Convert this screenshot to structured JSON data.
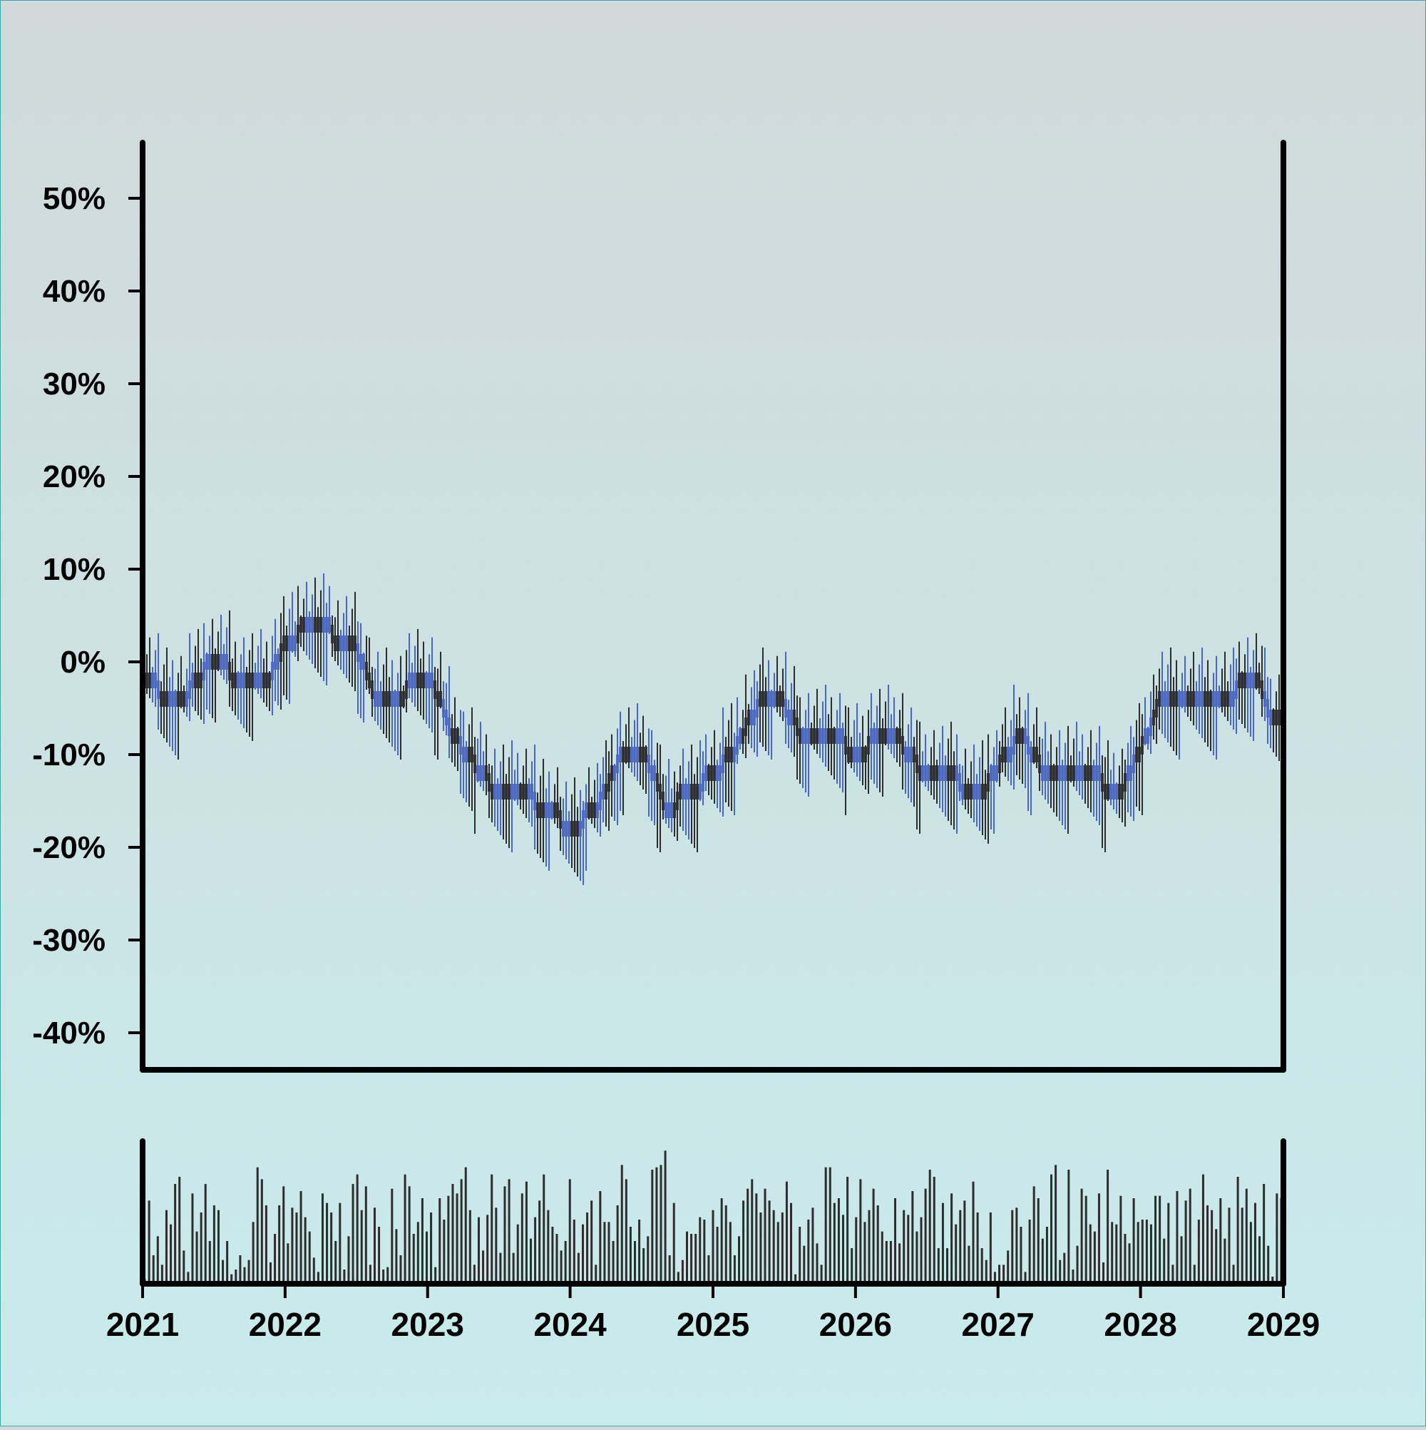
{
  "chart_data": {
    "type": "candlestick",
    "title": "",
    "xlabel": "",
    "ylabel": "",
    "y_ticks": [
      "50%",
      "40%",
      "30%",
      "20%",
      "10%",
      "0%",
      "-10%",
      "-20%",
      "-30%",
      "-40%"
    ],
    "x_ticks": [
      "2021",
      "2022",
      "2023",
      "2024",
      "2025",
      "2026",
      "2027",
      "2028",
      "2029"
    ],
    "ylim": [
      -0.44,
      0.56
    ],
    "xlim": [
      "2021-01-01",
      "2029-01-01"
    ],
    "grid": false,
    "legend": "none",
    "colors": {
      "up": "#2d2d2d",
      "down": "#4a67c1",
      "volume": "#2d2d2d",
      "axis": "#000000",
      "background_top": "#d1d9da",
      "background_bottom": "#c8ebec"
    },
    "series": [
      {
        "name": "",
        "dates": [
          "2021-01",
          "2021-03",
          "2021-05",
          "2021-07",
          "2021-09",
          "2021-11",
          "2022-01",
          "2022-03",
          "2022-05",
          "2022-07",
          "2022-09",
          "2022-11",
          "2023-01",
          "2023-03",
          "2023-05",
          "2023-07",
          "2023-09",
          "2023-11",
          "2024-01",
          "2024-03",
          "2024-05",
          "2024-07",
          "2024-09",
          "2024-11",
          "2025-01",
          "2025-03",
          "2025-05",
          "2025-07",
          "2025-09",
          "2025-11",
          "2026-01",
          "2026-03",
          "2026-05",
          "2026-07",
          "2026-09",
          "2026-11",
          "2027-01",
          "2027-03",
          "2027-05",
          "2027-07",
          "2027-09",
          "2027-11",
          "2028-01",
          "2028-03",
          "2028-05",
          "2028-07",
          "2028-09",
          "2028-11",
          "2028-12"
        ],
        "values": [
          -0.01,
          -0.04,
          -0.03,
          0.01,
          -0.02,
          -0.03,
          0.02,
          0.04,
          0.03,
          0.01,
          -0.05,
          -0.03,
          -0.01,
          -0.08,
          -0.11,
          -0.15,
          -0.14,
          -0.16,
          -0.18,
          -0.16,
          -0.11,
          -0.09,
          -0.16,
          -0.14,
          -0.12,
          -0.09,
          -0.04,
          -0.05,
          -0.09,
          -0.07,
          -0.11,
          -0.07,
          -0.09,
          -0.13,
          -0.12,
          -0.15,
          -0.11,
          -0.08,
          -0.12,
          -0.13,
          -0.12,
          -0.15,
          -0.09,
          -0.03,
          -0.04,
          -0.04,
          -0.03,
          -0.03,
          -0.06
        ]
      }
    ],
    "volume": {
      "values": [
        2,
        35,
        12,
        20,
        8,
        31,
        25,
        42,
        45,
        14,
        5,
        38,
        22,
        30,
        42,
        18,
        33,
        31,
        10,
        18,
        4,
        6,
        12,
        7,
        10,
        26,
        49,
        44,
        33,
        9,
        21,
        33,
        41,
        17,
        32,
        30,
        39,
        28,
        22,
        11,
        5,
        38,
        34,
        30,
        18,
        34,
        6,
        20,
        42,
        46,
        31,
        41,
        8,
        32,
        24,
        6,
        7,
        40,
        23,
        12,
        46,
        41,
        21,
        26,
        36,
        22,
        30,
        7,
        36,
        27,
        37,
        42,
        38,
        44,
        49,
        31,
        8,
        28,
        14,
        29,
        46,
        32,
        13,
        41,
        44,
        13,
        25,
        38,
        43,
        19,
        28,
        35,
        46,
        31,
        24,
        21,
        14,
        18,
        44,
        27,
        13,
        25,
        30,
        35,
        8,
        39,
        26,
        26,
        18,
        33,
        50,
        44,
        24,
        18,
        27,
        15,
        20,
        48,
        49,
        50,
        56,
        12,
        34,
        5,
        10,
        22,
        21,
        21,
        28,
        27,
        12,
        31,
        24,
        36,
        33,
        26,
        12,
        20,
        35,
        40,
        44,
        38,
        30,
        40,
        35,
        31,
        26,
        30,
        43,
        34,
        4,
        24,
        16,
        27,
        32,
        17,
        8,
        49,
        49,
        34,
        36,
        29,
        45,
        15,
        28,
        44,
        26,
        31,
        40,
        33,
        22,
        18,
        18,
        36,
        17,
        31,
        29,
        39,
        22,
        28,
        40,
        48,
        45,
        15,
        34,
        15,
        38,
        25,
        31,
        35,
        16,
        43,
        30,
        15,
        10,
        30,
        5,
        8,
        8,
        14,
        31,
        32,
        24,
        5,
        27,
        41,
        36,
        19,
        24,
        46,
        50,
        10,
        13,
        48,
        6,
        16,
        40,
        37,
        25,
        22,
        38,
        9,
        48,
        26,
        25,
        37,
        21,
        17,
        36,
        26,
        27,
        27,
        25,
        37,
        37,
        19,
        34,
        8,
        39,
        20,
        35,
        40,
        8,
        27,
        46,
        33,
        31,
        23,
        36,
        19,
        32,
        8,
        45,
        32,
        40,
        26,
        34,
        20,
        42,
        16,
        3,
        38,
        36
      ]
    }
  }
}
